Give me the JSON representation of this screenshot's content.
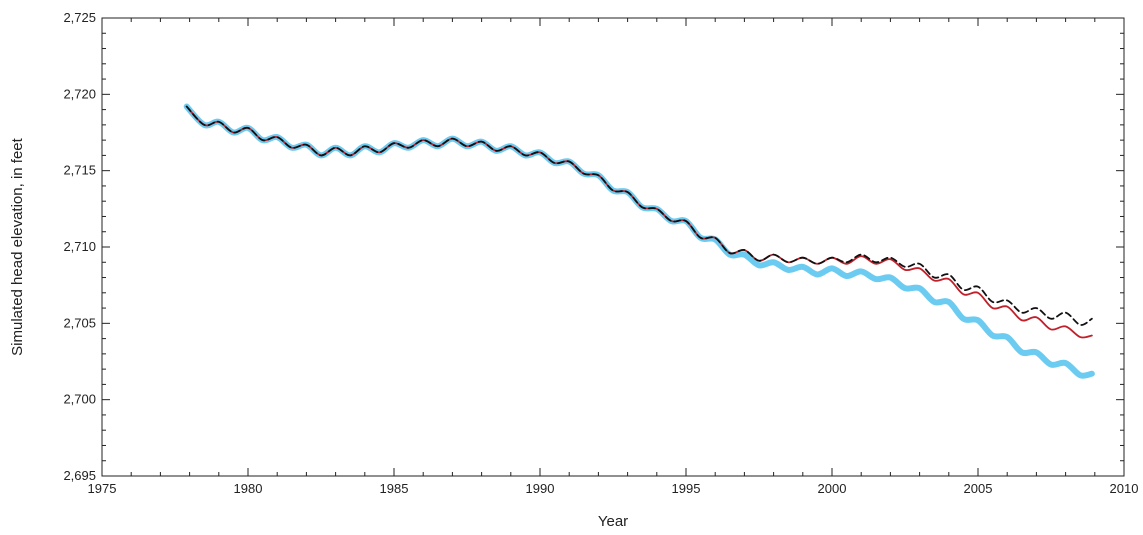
{
  "chart_data": {
    "type": "line",
    "xlabel": "Year",
    "ylabel": "Simulated head elevation, in feet",
    "xlim": [
      1975,
      2010
    ],
    "ylim": [
      2695,
      2725
    ],
    "x_ticks": [
      1975,
      1980,
      1985,
      1990,
      1995,
      2000,
      2005,
      2010
    ],
    "x_tick_labels": [
      "1975",
      "1980",
      "1985",
      "1990",
      "1995",
      "2000",
      "2005",
      "2010"
    ],
    "y_ticks": [
      2695,
      2700,
      2705,
      2710,
      2715,
      2720,
      2725
    ],
    "y_tick_labels": [
      "2,695",
      "2,700",
      "2,705",
      "2,710",
      "2,715",
      "2,720",
      "2,725"
    ],
    "grid": false,
    "legend": "none",
    "colors": {
      "blue": "#6ccbf0",
      "red": "#c0202a",
      "black": "#111111"
    },
    "x": [
      1977.9,
      1978.5,
      1979.0,
      1979.5,
      1980.0,
      1980.5,
      1981.0,
      1981.5,
      1982.0,
      1982.5,
      1983.0,
      1983.5,
      1984.0,
      1984.5,
      1985.0,
      1985.5,
      1986.0,
      1986.5,
      1987.0,
      1987.5,
      1988.0,
      1988.5,
      1989.0,
      1989.5,
      1990.0,
      1990.5,
      1991.0,
      1991.5,
      1992.0,
      1992.5,
      1993.0,
      1993.5,
      1994.0,
      1994.5,
      1995.0,
      1995.5,
      1996.0,
      1996.5,
      1997.0,
      1997.5,
      1998.0,
      1998.5,
      1999.0,
      1999.5,
      2000.0,
      2000.5,
      2001.0,
      2001.5,
      2002.0,
      2002.5,
      2003.0,
      2003.5,
      2004.0,
      2004.5,
      2005.0,
      2005.5,
      2006.0,
      2006.5,
      2007.0,
      2007.5,
      2008.0,
      2008.5,
      2008.9
    ],
    "series": [
      {
        "color": "#6ccbf0",
        "style": "thick",
        "values": [
          2719.2,
          2718.0,
          2718.2,
          2717.5,
          2717.8,
          2717.0,
          2717.2,
          2716.5,
          2716.7,
          2716.0,
          2716.5,
          2716.0,
          2716.6,
          2716.2,
          2716.8,
          2716.5,
          2717.0,
          2716.6,
          2717.1,
          2716.6,
          2716.9,
          2716.3,
          2716.6,
          2716.0,
          2716.2,
          2715.5,
          2715.6,
          2714.8,
          2714.7,
          2713.7,
          2713.6,
          2712.6,
          2712.5,
          2711.7,
          2711.7,
          2710.6,
          2710.5,
          2709.5,
          2709.5,
          2708.8,
          2709.0,
          2708.5,
          2708.7,
          2708.2,
          2708.6,
          2708.1,
          2708.4,
          2707.9,
          2708.0,
          2707.3,
          2707.3,
          2706.4,
          2706.4,
          2705.3,
          2705.2,
          2704.2,
          2704.1,
          2703.1,
          2703.1,
          2702.3,
          2702.4,
          2701.6,
          2701.7
        ]
      },
      {
        "color": "#c0202a",
        "style": "solid",
        "values": [
          2719.2,
          2718.0,
          2718.2,
          2717.5,
          2717.8,
          2717.0,
          2717.2,
          2716.5,
          2716.7,
          2716.0,
          2716.5,
          2716.0,
          2716.6,
          2716.2,
          2716.8,
          2716.5,
          2717.0,
          2716.6,
          2717.1,
          2716.6,
          2716.9,
          2716.3,
          2716.6,
          2716.0,
          2716.2,
          2715.5,
          2715.6,
          2714.8,
          2714.7,
          2713.7,
          2713.6,
          2712.6,
          2712.5,
          2711.7,
          2711.7,
          2710.6,
          2710.6,
          2709.6,
          2709.8,
          2709.1,
          2709.5,
          2709.0,
          2709.3,
          2708.9,
          2709.3,
          2708.9,
          2709.4,
          2708.9,
          2709.2,
          2708.5,
          2708.6,
          2707.8,
          2707.9,
          2706.9,
          2707.0,
          2706.0,
          2706.1,
          2705.2,
          2705.4,
          2704.6,
          2704.8,
          2704.1,
          2704.2
        ]
      },
      {
        "color": "#111111",
        "style": "dashed",
        "values": [
          2719.2,
          2718.0,
          2718.2,
          2717.5,
          2717.8,
          2717.0,
          2717.2,
          2716.5,
          2716.7,
          2716.0,
          2716.5,
          2716.0,
          2716.6,
          2716.2,
          2716.8,
          2716.5,
          2717.0,
          2716.6,
          2717.1,
          2716.6,
          2716.9,
          2716.3,
          2716.6,
          2716.0,
          2716.2,
          2715.5,
          2715.6,
          2714.8,
          2714.7,
          2713.7,
          2713.6,
          2712.6,
          2712.5,
          2711.7,
          2711.7,
          2710.6,
          2710.6,
          2709.6,
          2709.8,
          2709.1,
          2709.5,
          2709.0,
          2709.3,
          2708.9,
          2709.3,
          2709.0,
          2709.5,
          2709.0,
          2709.3,
          2708.7,
          2708.9,
          2708.0,
          2708.2,
          2707.2,
          2707.4,
          2706.4,
          2706.5,
          2705.7,
          2706.0,
          2705.3,
          2705.7,
          2704.9,
          2705.3
        ]
      }
    ]
  }
}
